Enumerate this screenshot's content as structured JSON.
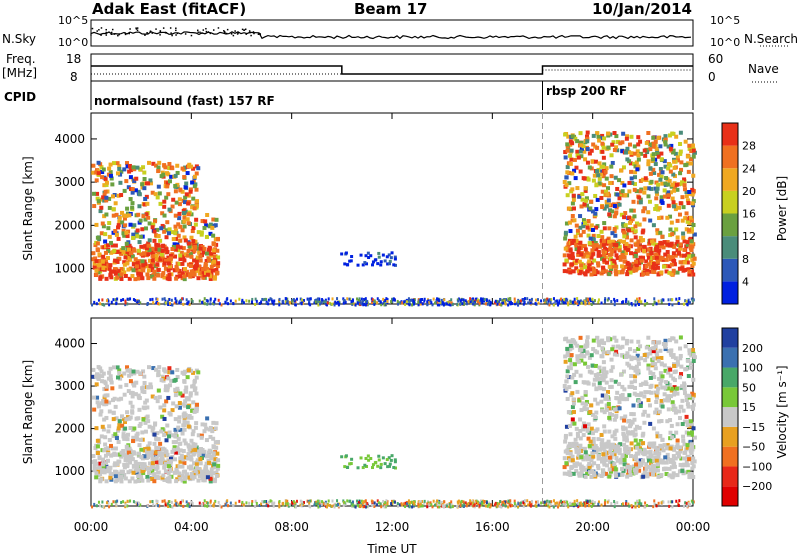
{
  "header": {
    "title": "Adak East (fitACF)",
    "beam": "Beam 17",
    "date": "10/Jan/2014"
  },
  "noise_panel": {
    "left_label": "N.Sky",
    "right_label": "N.Search",
    "tick_top": "10^5",
    "tick_bottom": "10^0"
  },
  "freq_panel": {
    "left_label_1": "Freq.",
    "left_label_2": "[MHz]",
    "right_label": "Nave",
    "left_ticks": [
      "18",
      "8"
    ],
    "right_ticks": [
      "60",
      "0"
    ]
  },
  "cpid_panel": {
    "label": "CPID",
    "segments": [
      {
        "start_hour": 0.0,
        "text": "normalsound (fast) 157 RF"
      },
      {
        "start_hour": 18.0,
        "text": "rbsp 200 RF"
      }
    ]
  },
  "chart_data": [
    {
      "type": "heatmap",
      "name": "power",
      "ylabel": "Slant Range [km]",
      "yticks": [
        "1000",
        "2000",
        "3000",
        "4000"
      ],
      "ylim": [
        180,
        4600
      ],
      "colorbar": {
        "label": "Power [dB]",
        "ticks": [
          "4",
          "8",
          "12",
          "16",
          "20",
          "24",
          "28"
        ],
        "range": [
          0,
          32
        ],
        "colors": [
          "#0020e0",
          "#2c58b8",
          "#4a8c7a",
          "#6aa040",
          "#c8d020",
          "#f0a820",
          "#f07020",
          "#e83018"
        ]
      }
    },
    {
      "type": "heatmap",
      "name": "velocity",
      "ylabel": "Slant Range [km]",
      "yticks": [
        "1000",
        "2000",
        "3000",
        "4000"
      ],
      "ylim": [
        180,
        4600
      ],
      "colorbar": {
        "label": "Velocity [m s⁻¹]",
        "ticks": [
          "200",
          "100",
          "50",
          "15",
          "−15",
          "−50",
          "−100",
          "−200"
        ],
        "colors": [
          "#2040a0",
          "#3a70b0",
          "#48a868",
          "#78c838",
          "#c8c8c8",
          "#e8a020",
          "#f07020",
          "#e82818",
          "#e00000"
        ]
      }
    }
  ],
  "time_axis": {
    "label": "Time UT",
    "ticks": [
      "00:00",
      "04:00",
      "08:00",
      "12:00",
      "16:00",
      "20:00",
      "00:00"
    ],
    "range_hours": [
      0,
      24
    ],
    "cpid_change_hour": 18.0
  }
}
